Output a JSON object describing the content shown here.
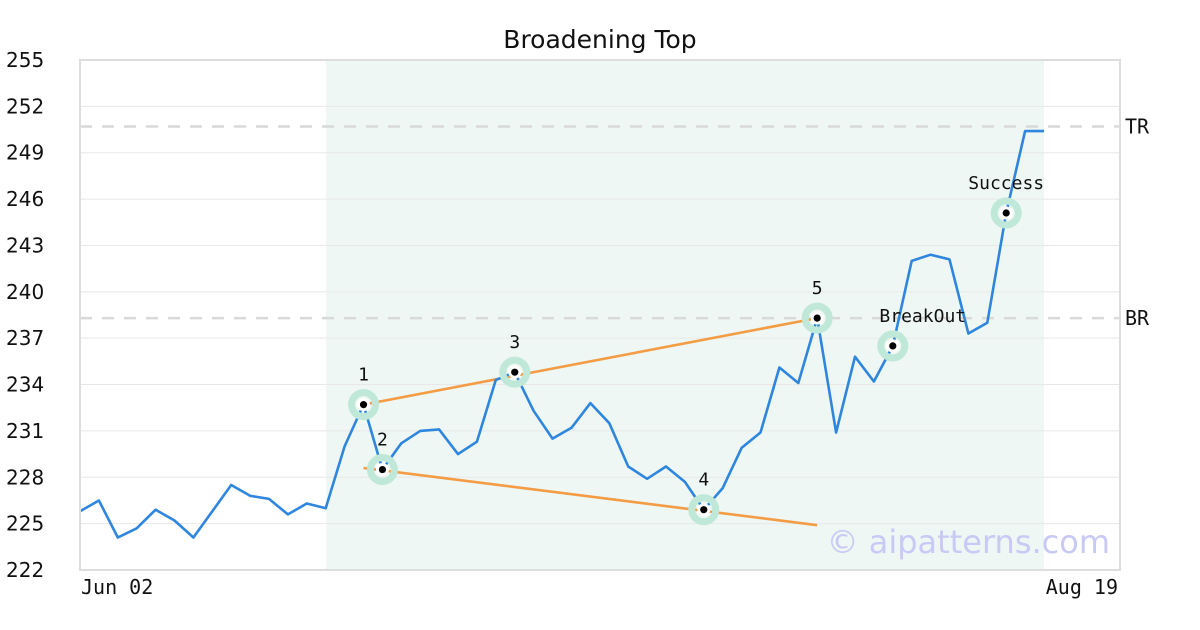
{
  "chart_data": {
    "type": "line",
    "title": "Broadening Top",
    "xlabel": "",
    "ylabel": "",
    "ylim": [
      222,
      255
    ],
    "yticks": [
      222,
      225,
      228,
      231,
      234,
      237,
      240,
      243,
      246,
      249,
      252,
      255
    ],
    "x_tick_labels": [
      "Jun 02",
      "Aug 19"
    ],
    "grid": true,
    "colors": {
      "price": "#2e86de",
      "trendline": "#f39c45",
      "highlight_region": "#eef7f3",
      "marker_halo": "#bfe8d8",
      "level_line": "#d9d9d9"
    },
    "series": [
      {
        "values": [
          225.8,
          226.5,
          224.1,
          224.7,
          225.9,
          225.2,
          224.1,
          225.8,
          227.5,
          226.8,
          226.6,
          225.6,
          226.3,
          226.0,
          230.0,
          232.7,
          228.5,
          230.2,
          231.0,
          231.1,
          229.5,
          230.3,
          234.3,
          234.8,
          232.3,
          230.5,
          231.2,
          232.8,
          231.5,
          228.7,
          227.9,
          228.7,
          227.7,
          225.9,
          227.3,
          229.9,
          230.9,
          235.1,
          234.1,
          238.3,
          230.9,
          235.8,
          234.2,
          236.5,
          242.0,
          242.4,
          242.1,
          237.3,
          238.0,
          245.1,
          250.4,
          250.4
        ]
      }
    ],
    "highlight_range": {
      "start_index": 13,
      "end_index": 51
    },
    "levels": [
      {
        "label": "TR",
        "value": 250.7
      },
      {
        "label": "BR",
        "value": 238.3
      }
    ],
    "trendlines": [
      {
        "from": {
          "index": 15,
          "value": 232.7
        },
        "to": {
          "index": 39,
          "value": 238.3
        }
      },
      {
        "from": {
          "index": 15,
          "value": 228.6
        },
        "to": {
          "index": 39,
          "value": 224.9
        }
      }
    ],
    "points": [
      {
        "label": "1",
        "index": 15,
        "value": 232.7,
        "label_pos": "above"
      },
      {
        "label": "2",
        "index": 16,
        "value": 228.5,
        "label_pos": "above"
      },
      {
        "label": "3",
        "index": 23,
        "value": 234.8,
        "label_pos": "above"
      },
      {
        "label": "4",
        "index": 33,
        "value": 225.9,
        "label_pos": "above"
      },
      {
        "label": "5",
        "index": 39,
        "value": 238.3,
        "label_pos": "above"
      },
      {
        "label": "BreakOut",
        "index": 43,
        "value": 236.5,
        "label_pos": "above-right"
      },
      {
        "label": "Success",
        "index": 49,
        "value": 245.1,
        "label_pos": "above"
      }
    ],
    "watermark": "© aipatterns.com"
  }
}
